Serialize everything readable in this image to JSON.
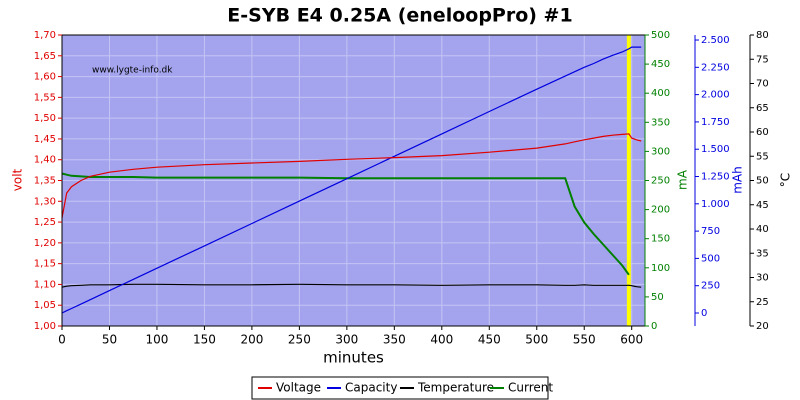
{
  "chart_data": {
    "type": "line",
    "title": "E-SYB E4 0.25A (eneloopPro) #1",
    "watermark": "www.lygte-info.dk",
    "xlabel": "minutes",
    "ylabel": "volt",
    "y2label": "mA",
    "y3label": "mAh",
    "y4label": "°C",
    "x": [
      0,
      5,
      10,
      20,
      30,
      50,
      75,
      100,
      150,
      200,
      250,
      300,
      350,
      400,
      450,
      500,
      530,
      540,
      550,
      560,
      570,
      580,
      590,
      597,
      600,
      605,
      610
    ],
    "series": [
      {
        "name": "Voltage",
        "color": "#e00000",
        "axis": "y",
        "values": [
          1.26,
          1.32,
          1.335,
          1.35,
          1.36,
          1.37,
          1.377,
          1.382,
          1.388,
          1.392,
          1.396,
          1.401,
          1.405,
          1.41,
          1.418,
          1.428,
          1.438,
          1.443,
          1.448,
          1.452,
          1.456,
          1.459,
          1.461,
          1.462,
          1.452,
          1.448,
          1.445
        ]
      },
      {
        "name": "Capacity",
        "color": "#0000e0",
        "axis": "y3",
        "values": [
          0,
          21,
          41,
          82,
          123,
          205,
          308,
          410,
          615,
          820,
          1025,
          1230,
          1435,
          1640,
          1845,
          2050,
          2170,
          2210,
          2250,
          2285,
          2325,
          2360,
          2390,
          2420,
          2435,
          2435,
          2435
        ]
      },
      {
        "name": "Temperature",
        "color": "#000000",
        "axis": "y4",
        "values": [
          28,
          28.2,
          28.3,
          28.4,
          28.5,
          28.5,
          28.6,
          28.6,
          28.5,
          28.5,
          28.6,
          28.5,
          28.5,
          28.4,
          28.5,
          28.5,
          28.4,
          28.4,
          28.5,
          28.4,
          28.4,
          28.4,
          28.4,
          28.4,
          28.3,
          28.1,
          28.0
        ]
      },
      {
        "name": "Current",
        "color": "#008000",
        "axis": "y2",
        "values": [
          262,
          260,
          258,
          257,
          256,
          256,
          256,
          255,
          255,
          255,
          255,
          254,
          254,
          254,
          254,
          254,
          254,
          205,
          178,
          158,
          140,
          122,
          104,
          88,
          null,
          null,
          null
        ]
      }
    ],
    "highlight_x": 597,
    "highlight_color": "#ffff00",
    "xlim": [
      0,
      614
    ],
    "xticks": [
      0,
      50,
      100,
      150,
      200,
      250,
      300,
      350,
      400,
      450,
      500,
      550,
      600
    ],
    "ylim": [
      1.0,
      1.7
    ],
    "yticks": [
      {
        "value": 1.0,
        "label": "1,00"
      },
      {
        "value": 1.05,
        "label": "1,05"
      },
      {
        "value": 1.1,
        "label": "1,10"
      },
      {
        "value": 1.15,
        "label": "1,15"
      },
      {
        "value": 1.2,
        "label": "1,20"
      },
      {
        "value": 1.25,
        "label": "1,25"
      },
      {
        "value": 1.3,
        "label": "1,30"
      },
      {
        "value": 1.35,
        "label": "1,35"
      },
      {
        "value": 1.4,
        "label": "1,40"
      },
      {
        "value": 1.45,
        "label": "1,45"
      },
      {
        "value": 1.5,
        "label": "1,50"
      },
      {
        "value": 1.55,
        "label": "1,55"
      },
      {
        "value": 1.6,
        "label": "1,60"
      },
      {
        "value": 1.65,
        "label": "1,65"
      },
      {
        "value": 1.7,
        "label": "1,70"
      }
    ],
    "y2lim": [
      0,
      500
    ],
    "y2ticks": [
      0,
      50,
      100,
      150,
      200,
      250,
      300,
      350,
      400,
      450,
      500
    ],
    "y3lim": [
      -119,
      2546
    ],
    "y3ticks": [
      0,
      250,
      500,
      750,
      {
        "value": 1000,
        "label": "1.000"
      },
      {
        "value": 1250,
        "label": "1.250"
      },
      {
        "value": 1500,
        "label": "1.500"
      },
      {
        "value": 1750,
        "label": "1.750"
      },
      {
        "value": 2000,
        "label": "2.000"
      },
      {
        "value": 2250,
        "label": "2.250"
      },
      {
        "value": 2500,
        "label": "2.500"
      }
    ],
    "y4lim": [
      20,
      80
    ],
    "y4ticks": [
      20,
      25,
      30,
      35,
      40,
      45,
      50,
      55,
      60,
      65,
      70,
      75,
      80
    ],
    "grid": true,
    "background": "#a4a4ee",
    "legend": "bottom"
  }
}
